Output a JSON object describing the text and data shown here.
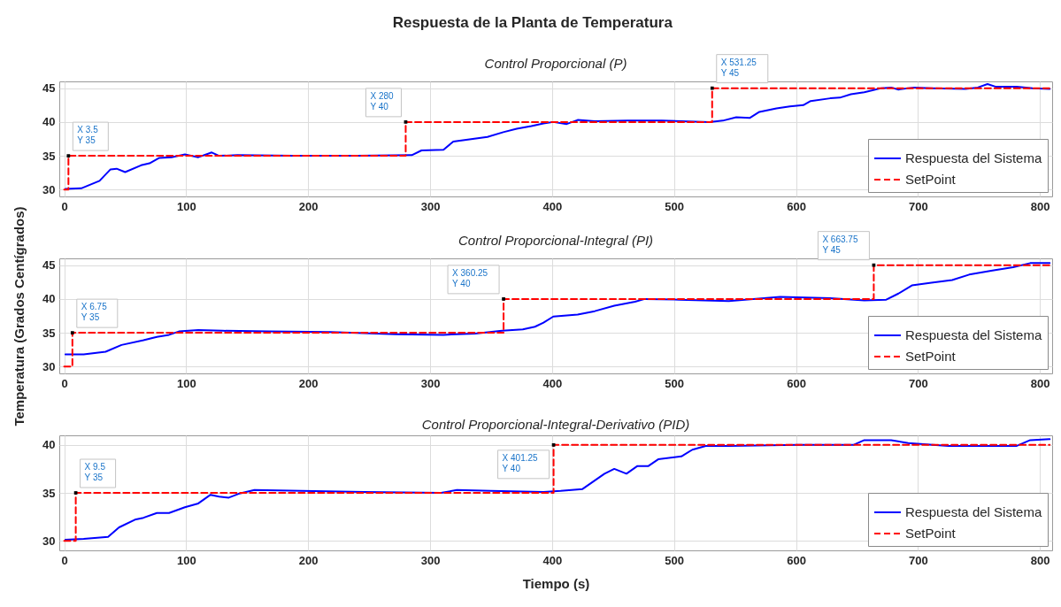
{
  "chart_data": [
    {
      "type": "line",
      "title": "Respuesta de la Planta de Temperatura",
      "subtitle": "Control Proporcional (P)",
      "ylabel": "Temperatura (Grados Centígrados)",
      "xlim": [
        -4,
        810
      ],
      "xticks": [
        0,
        100,
        200,
        300,
        400,
        500,
        600,
        700,
        800
      ],
      "ylim": [
        29,
        46
      ],
      "yticks": [
        30,
        35,
        40,
        45
      ],
      "grid": true,
      "legend": "bottom right",
      "series": [
        {
          "name": "Respuesta del Sistema",
          "color": "#0000ff",
          "line_style": "solid",
          "x": [
            1,
            14,
            29,
            38,
            43,
            50,
            63,
            70,
            78,
            88,
            99,
            110,
            121,
            127,
            142,
            188,
            240,
            285,
            293,
            311,
            319,
            335,
            347,
            360,
            371,
            383,
            393,
            401,
            412,
            421,
            435,
            462,
            490,
            529,
            540,
            551,
            562,
            570,
            584,
            595,
            606,
            612,
            628,
            636,
            645,
            656,
            670,
            678,
            684,
            697,
            711,
            739,
            749,
            757,
            764,
            781,
            794,
            808
          ],
          "values": [
            30.1,
            30.2,
            31.3,
            33.0,
            33.1,
            32.6,
            33.6,
            33.9,
            34.7,
            34.8,
            35.2,
            34.8,
            35.5,
            35.0,
            35.1,
            35.0,
            35.0,
            35.1,
            35.8,
            35.9,
            37.1,
            37.5,
            37.8,
            38.5,
            39.0,
            39.4,
            39.8,
            40.0,
            39.7,
            40.3,
            40.1,
            40.2,
            40.2,
            40.0,
            40.2,
            40.7,
            40.6,
            41.5,
            42.0,
            42.3,
            42.5,
            43.1,
            43.5,
            43.6,
            44.1,
            44.4,
            45.0,
            45.1,
            44.8,
            45.1,
            45.0,
            44.9,
            45.1,
            45.6,
            45.2,
            45.2,
            45.0,
            44.9
          ]
        },
        {
          "name": "SetPoint",
          "color": "#ff0000",
          "line_style": "dashed",
          "type": "step",
          "x": [
            0,
            3.5,
            280,
            531.25,
            808
          ],
          "values": [
            30,
            35,
            40,
            45,
            45
          ]
        }
      ],
      "annotations": [
        {
          "text": "X 3.5\nY 35",
          "x": 3.5,
          "y": 35
        },
        {
          "text": "X 280\nY 40",
          "x": 280,
          "y": 40
        },
        {
          "text": "X 531.25\nY 45",
          "x": 531.25,
          "y": 45
        }
      ]
    },
    {
      "type": "line",
      "subtitle": "Control Proporcional-Integral (PI)",
      "xlim": [
        -4,
        810
      ],
      "xticks": [
        0,
        100,
        200,
        300,
        400,
        500,
        600,
        700,
        800
      ],
      "ylim": [
        29,
        46
      ],
      "yticks": [
        30,
        35,
        40,
        45
      ],
      "grid": true,
      "legend": "bottom right",
      "series": [
        {
          "name": "Respuesta del Sistema",
          "color": "#0000ff",
          "line_style": "solid",
          "x": [
            1,
            16,
            34,
            47,
            65,
            76,
            86,
            94,
            110,
            130,
            168,
            219,
            272,
            311,
            337,
            359,
            376,
            386,
            393,
            401,
            421,
            435,
            451,
            468,
            476,
            504,
            545,
            587,
            628,
            656,
            674,
            684,
            695,
            711,
            728,
            742,
            761,
            778,
            792,
            808
          ],
          "values": [
            31.8,
            31.8,
            32.2,
            33.2,
            33.9,
            34.4,
            34.7,
            35.2,
            35.4,
            35.3,
            35.2,
            35.1,
            34.8,
            34.7,
            34.9,
            35.3,
            35.5,
            35.9,
            36.5,
            37.4,
            37.7,
            38.2,
            39.0,
            39.6,
            40.0,
            39.9,
            39.7,
            40.3,
            40.1,
            39.8,
            39.9,
            40.8,
            42.0,
            42.4,
            42.8,
            43.6,
            44.2,
            44.7,
            45.3,
            45.3
          ]
        },
        {
          "name": "SetPoint",
          "color": "#ff0000",
          "line_style": "dashed",
          "type": "step",
          "x": [
            0,
            6.75,
            360.25,
            663.75,
            808
          ],
          "values": [
            30,
            35,
            40,
            45,
            45
          ]
        }
      ],
      "annotations": [
        {
          "text": "X 6.75\nY 35",
          "x": 6.75,
          "y": 35
        },
        {
          "text": "X 360.25\nY 40",
          "x": 360.25,
          "y": 40
        },
        {
          "text": "X 663.75\nY 45",
          "x": 663.75,
          "y": 45
        }
      ]
    },
    {
      "type": "line",
      "subtitle": "Control Proporcional-Integral-Derivativo (PID)",
      "xlabel": "Tiempo (s)",
      "xlim": [
        -4,
        810
      ],
      "xticks": [
        0,
        100,
        200,
        300,
        400,
        500,
        600,
        700,
        800
      ],
      "ylim": [
        29,
        41
      ],
      "yticks": [
        30,
        35,
        40
      ],
      "grid": true,
      "legend": "bottom right",
      "series": [
        {
          "name": "Respuesta del Sistema",
          "color": "#0000ff",
          "line_style": "solid",
          "x": [
            1,
            16,
            36,
            45,
            58,
            65,
            76,
            86,
            99,
            110,
            120,
            127,
            135,
            143,
            156,
            195,
            246,
            309,
            322,
            350,
            393,
            407,
            425,
            443,
            451,
            461,
            470,
            479,
            487,
            506,
            515,
            526,
            545,
            601,
            647,
            656,
            678,
            692,
            725,
            781,
            792,
            808
          ],
          "values": [
            30.1,
            30.2,
            30.4,
            31.4,
            32.2,
            32.4,
            32.9,
            32.9,
            33.5,
            33.9,
            34.8,
            34.6,
            34.5,
            34.9,
            35.3,
            35.2,
            35.1,
            35.0,
            35.3,
            35.2,
            35.1,
            35.2,
            35.4,
            37.0,
            37.5,
            37.0,
            37.8,
            37.8,
            38.5,
            38.8,
            39.5,
            39.9,
            39.9,
            40.0,
            40.0,
            40.5,
            40.5,
            40.2,
            39.9,
            39.9,
            40.5,
            40.6
          ]
        },
        {
          "name": "SetPoint",
          "color": "#ff0000",
          "line_style": "dashed",
          "type": "step",
          "x": [
            0,
            9.5,
            401.25,
            808
          ],
          "values": [
            30,
            35,
            40,
            40
          ]
        }
      ],
      "annotations": [
        {
          "text": "X 9.5\nY 35",
          "x": 9.5,
          "y": 35
        },
        {
          "text": "X 401.25\nY 40",
          "x": 401.25,
          "y": 40
        }
      ]
    }
  ]
}
